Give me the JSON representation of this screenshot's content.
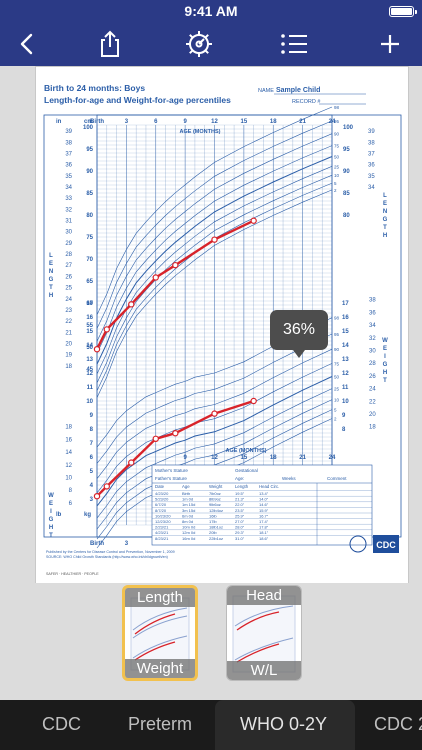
{
  "status_bar": {
    "time": "9:41 AM"
  },
  "toolbar": {
    "buttons": [
      "back-button",
      "share-button",
      "settings-button",
      "list-button",
      "add-button"
    ]
  },
  "chart": {
    "title_line1": "Birth to 24 months: Boys",
    "title_line2": "Length-for-age and Weight-for-age percentiles",
    "name_label": "NAME",
    "name_value": "Sample Child",
    "record_label": "RECORD #",
    "age_label": "AGE (MONTHS)",
    "birth_label": "Birth",
    "length_label": "LENGTH",
    "weight_label": "WEIGHT",
    "unit_in": "in",
    "unit_cm": "cm",
    "unit_kg": "kg",
    "unit_lb": "lb",
    "tooltip": "36%",
    "accent_color": "#d8232a",
    "grid_color": "#2b5ea8",
    "table": {
      "mothers_stature": "Mother's Stature",
      "fathers_stature": "Father's Stature",
      "gestational_age": "Gestational",
      "age_label": "Age:",
      "weeks_label": "Weeks",
      "comment_label": "Comment",
      "columns": [
        "Date",
        "Age",
        "Weight",
        "Length",
        "Head Circ."
      ],
      "rows": [
        [
          "4/23/20",
          "Birth",
          "7lb0oz",
          "19.5\"",
          "13.4\""
        ],
        [
          "5/23/20",
          "1m 0d",
          "8lb9oz",
          "21.3\"",
          "14.0\""
        ],
        [
          "6/7/20",
          "1m 15d",
          "9lb6oz",
          "22.0\"",
          "14.6\""
        ],
        [
          "8/7/20",
          "3m 15d",
          "12lb4oz",
          "23.5\"",
          "15.9\""
        ],
        [
          "10/23/20",
          "6m 0d",
          "16lb",
          "25.9\"",
          "16.7\""
        ],
        [
          "12/23/20",
          "8m 0d",
          "17lb",
          "27.0\"",
          "17.4\""
        ],
        [
          "2/23/21",
          "10m 0d",
          "18lb1oz",
          "28.0\"",
          "17.8\""
        ],
        [
          "4/23/21",
          "12m 0d",
          "20lb",
          "29.3\"",
          "18.1\""
        ],
        [
          "8/23/21",
          "16m 0d",
          "22lb1oz",
          "31.0\"",
          "18.6\""
        ]
      ]
    },
    "footer": [
      "Published by the Centers for Disease Control and Prevention, November 1, 2009",
      "SOURCE: WHO Child Growth Standards (http://www.who.int/childgrowth/en)"
    ],
    "cdc_logo_text": "CDC"
  },
  "chart_data": [
    {
      "type": "line",
      "title": "Length-for-age",
      "xlabel": "AGE (MONTHS)",
      "ylabel": "LENGTH",
      "xlim": [
        0,
        24
      ],
      "ylim": [
        45,
        100
      ],
      "x": [
        0,
        1,
        3.5,
        6,
        8,
        12,
        16
      ],
      "series": [
        {
          "name": "",
          "values": [
            49.5,
            54,
            59.7,
            65.8,
            68.6,
            74.4,
            78.7
          ]
        }
      ]
    },
    {
      "type": "line",
      "title": "Weight-for-age",
      "xlabel": "AGE (MONTHS)",
      "ylabel": "WEIGHT",
      "xlim": [
        0,
        24
      ],
      "ylim": [
        2,
        17
      ],
      "x": [
        0,
        1,
        3.5,
        6,
        8,
        12,
        16
      ],
      "series": [
        {
          "name": "",
          "values": [
            3.2,
            3.9,
            5.6,
            7.3,
            7.7,
            9.1,
            10.0
          ]
        }
      ]
    }
  ],
  "thumbnails": [
    {
      "top": "Length",
      "bottom": "Weight",
      "selected": true
    },
    {
      "top": "Head",
      "bottom": "W/L",
      "selected": false
    }
  ],
  "tabs": [
    "CDC",
    "Preterm",
    "WHO 0-2Y",
    "CDC 2"
  ]
}
